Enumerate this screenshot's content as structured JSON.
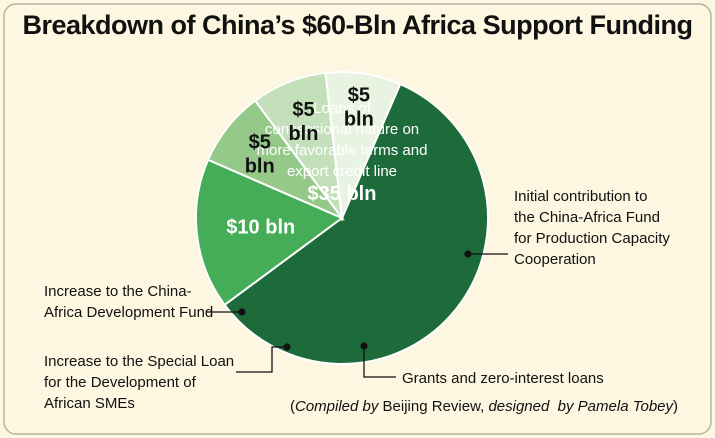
{
  "title": "Breakdown of China’s $60-Bln Africa Support Funding",
  "colors": {
    "background": "#fdf6e0",
    "slice_loans": "#1d6b3b",
    "slice_fund_production": "#45ad57",
    "slice_grants": "#95c98a",
    "slice_special_loan": "#c4e0bb",
    "slice_dev_fund": "#e9f3e2"
  },
  "chart_data": {
    "type": "pie",
    "unit": "bln",
    "slices": [
      {
        "key": "loans",
        "label": "Loans of concessional nature on more favorable terms and export credit line",
        "label_lines": [
          "Loans of",
          "concessional nature on",
          "more favorable terms and",
          "export credit line"
        ],
        "value": 35,
        "value_label": "$35 bln"
      },
      {
        "key": "fund_production",
        "label": "Initial contribution to the China-Africa Fund for Production Capacity Cooperation",
        "label_lines": [
          "Initial contribution to",
          "the China-Africa Fund",
          "for Production Capacity",
          "Cooperation"
        ],
        "value": 10,
        "value_label": "$10 bln"
      },
      {
        "key": "grants",
        "label": "Grants and zero-interest loans",
        "label_lines": [
          "Grants and zero-interest loans"
        ],
        "value": 5,
        "value_label": "$5 bln"
      },
      {
        "key": "special_loan",
        "label": "Increase to the Special Loan for the Development of African SMEs",
        "label_lines": [
          "Increase to the Special Loan",
          "for the Development of",
          "African SMEs"
        ],
        "value": 5,
        "value_label": "$5 bln"
      },
      {
        "key": "dev_fund",
        "label": "Increase to the China-Africa Development Fund",
        "label_lines": [
          "Increase to the China-",
          "Africa Development Fund"
        ],
        "value": 5,
        "value_label": "$5 bln"
      }
    ]
  },
  "credit": {
    "open": "(",
    "compiled": "Compiled by",
    "source": "Beijing Review,",
    "designed": "designed",
    "by": "by Pamela Tobey",
    "close": ")"
  }
}
